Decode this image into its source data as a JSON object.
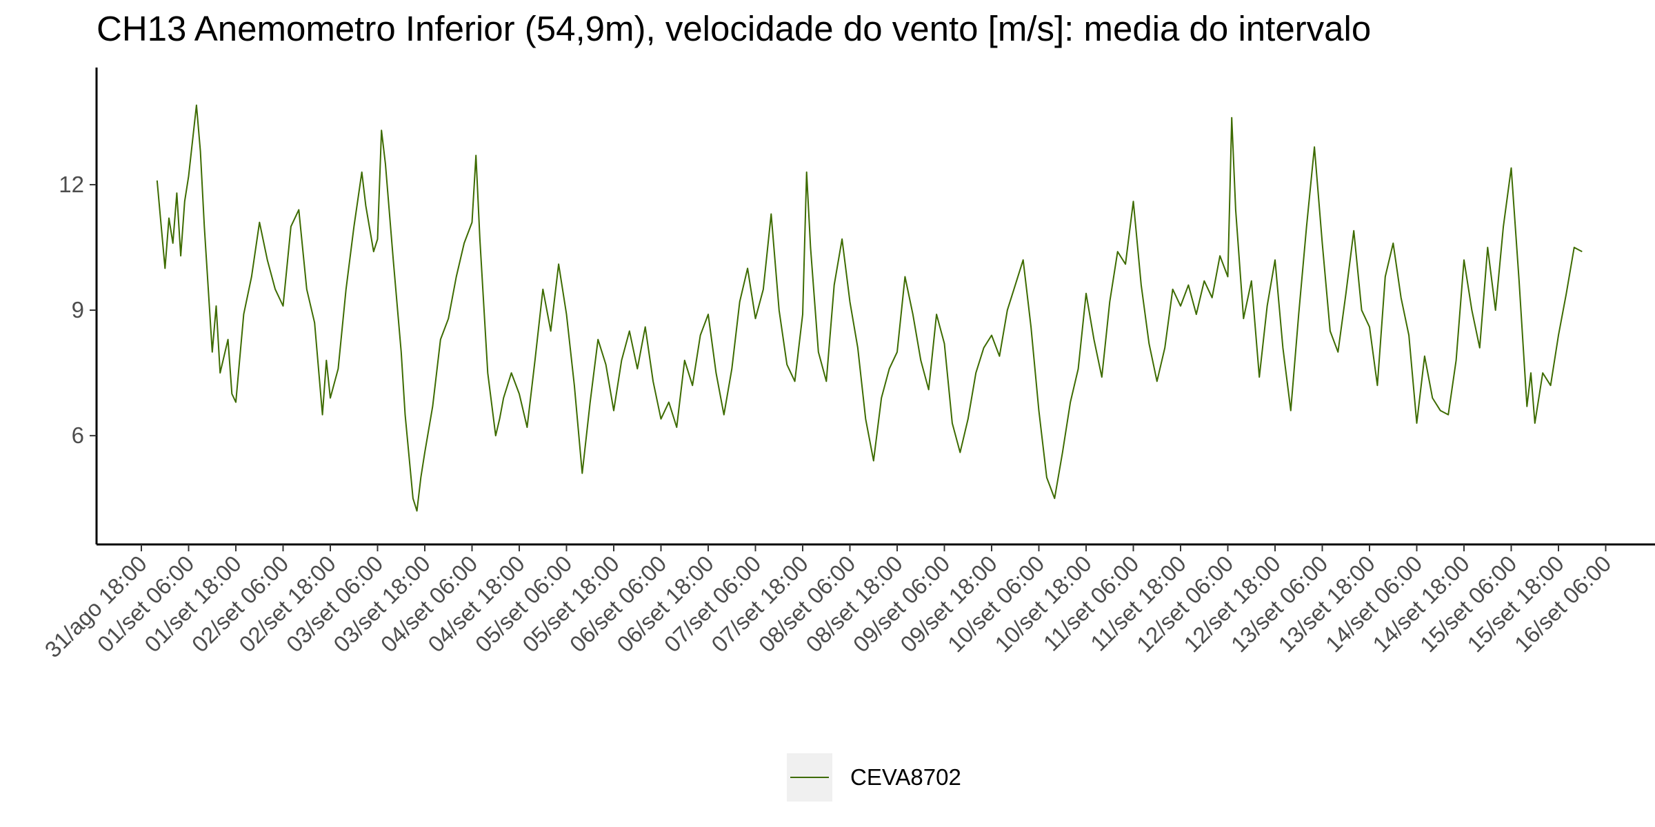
{
  "chart_data": {
    "type": "line",
    "title": "CH13 Anemometro Inferior (54,9m), velocidade do vento [m/s]: media do intervalo",
    "xlabel": "",
    "ylabel": "",
    "x_ticks": [
      "31/ago 18:00",
      "01/set 06:00",
      "01/set 18:00",
      "02/set 06:00",
      "02/set 18:00",
      "03/set 06:00",
      "03/set 18:00",
      "04/set 06:00",
      "04/set 18:00",
      "05/set 06:00",
      "05/set 18:00",
      "06/set 06:00",
      "06/set 18:00",
      "07/set 06:00",
      "07/set 18:00",
      "08/set 06:00",
      "08/set 18:00",
      "09/set 06:00",
      "09/set 18:00",
      "10/set 06:00",
      "10/set 18:00",
      "11/set 06:00",
      "11/set 18:00",
      "12/set 06:00",
      "12/set 18:00",
      "13/set 06:00",
      "13/set 18:00",
      "14/set 06:00",
      "14/set 18:00",
      "15/set 06:00",
      "15/set 18:00",
      "16/set 06:00"
    ],
    "y_ticks": [
      6,
      9,
      12
    ],
    "ylim": [
      3.4,
      14.8
    ],
    "grid": false,
    "legend_position": "bottom",
    "color": "#3d6b00",
    "series": [
      {
        "name": "CEVA8702",
        "values": [
          [
            "31/ago 22:00",
            12.1
          ],
          [
            "01/set 00:00",
            10.0
          ],
          [
            "01/set 01:00",
            11.2
          ],
          [
            "01/set 02:00",
            10.6
          ],
          [
            "01/set 03:00",
            11.8
          ],
          [
            "01/set 04:00",
            10.3
          ],
          [
            "01/set 05:00",
            11.6
          ],
          [
            "01/set 06:00",
            12.2
          ],
          [
            "01/set 08:00",
            13.9
          ],
          [
            "01/set 09:00",
            12.8
          ],
          [
            "01/set 10:00",
            11.0
          ],
          [
            "01/set 12:00",
            8.0
          ],
          [
            "01/set 13:00",
            9.1
          ],
          [
            "01/set 14:00",
            7.5
          ],
          [
            "01/set 16:00",
            8.3
          ],
          [
            "01/set 17:00",
            7.0
          ],
          [
            "01/set 18:00",
            6.8
          ],
          [
            "01/set 20:00",
            8.9
          ],
          [
            "01/set 22:00",
            9.8
          ],
          [
            "02/set 00:00",
            11.1
          ],
          [
            "02/set 02:00",
            10.2
          ],
          [
            "02/set 04:00",
            9.5
          ],
          [
            "02/set 06:00",
            9.1
          ],
          [
            "02/set 08:00",
            11.0
          ],
          [
            "02/set 10:00",
            11.4
          ],
          [
            "02/set 12:00",
            9.5
          ],
          [
            "02/set 14:00",
            8.7
          ],
          [
            "02/set 16:00",
            6.5
          ],
          [
            "02/set 17:00",
            7.8
          ],
          [
            "02/set 18:00",
            6.9
          ],
          [
            "02/set 20:00",
            7.6
          ],
          [
            "02/set 22:00",
            9.5
          ],
          [
            "03/set 00:00",
            11.0
          ],
          [
            "03/set 02:00",
            12.3
          ],
          [
            "03/set 03:00",
            11.5
          ],
          [
            "03/set 05:00",
            10.4
          ],
          [
            "03/set 06:00",
            10.7
          ],
          [
            "03/set 07:00",
            13.3
          ],
          [
            "03/set 08:00",
            12.5
          ],
          [
            "03/set 10:00",
            10.2
          ],
          [
            "03/set 12:00",
            8.0
          ],
          [
            "03/set 13:00",
            6.5
          ],
          [
            "03/set 15:00",
            4.5
          ],
          [
            "03/set 16:00",
            4.2
          ],
          [
            "03/set 17:00",
            5.0
          ],
          [
            "03/set 18:00",
            5.6
          ],
          [
            "03/set 20:00",
            6.7
          ],
          [
            "03/set 22:00",
            8.3
          ],
          [
            "04/set 00:00",
            8.8
          ],
          [
            "04/set 02:00",
            9.8
          ],
          [
            "04/set 04:00",
            10.6
          ],
          [
            "04/set 06:00",
            11.1
          ],
          [
            "04/set 07:00",
            12.7
          ],
          [
            "04/set 08:00",
            10.7
          ],
          [
            "04/set 10:00",
            7.5
          ],
          [
            "04/set 12:00",
            6.0
          ],
          [
            "04/set 13:00",
            6.4
          ],
          [
            "04/set 14:00",
            6.9
          ],
          [
            "04/set 16:00",
            7.5
          ],
          [
            "04/set 18:00",
            7.0
          ],
          [
            "04/set 20:00",
            6.2
          ],
          [
            "04/set 22:00",
            7.8
          ],
          [
            "05/set 00:00",
            9.5
          ],
          [
            "05/set 02:00",
            8.5
          ],
          [
            "05/set 04:00",
            10.1
          ],
          [
            "05/set 06:00",
            8.9
          ],
          [
            "05/set 08:00",
            7.2
          ],
          [
            "05/set 10:00",
            5.1
          ],
          [
            "05/set 12:00",
            6.8
          ],
          [
            "05/set 14:00",
            8.3
          ],
          [
            "05/set 16:00",
            7.7
          ],
          [
            "05/set 18:00",
            6.6
          ],
          [
            "05/set 20:00",
            7.8
          ],
          [
            "05/set 22:00",
            8.5
          ],
          [
            "06/set 00:00",
            7.6
          ],
          [
            "06/set 02:00",
            8.6
          ],
          [
            "06/set 04:00",
            7.3
          ],
          [
            "06/set 06:00",
            6.4
          ],
          [
            "06/set 08:00",
            6.8
          ],
          [
            "06/set 10:00",
            6.2
          ],
          [
            "06/set 12:00",
            7.8
          ],
          [
            "06/set 14:00",
            7.2
          ],
          [
            "06/set 16:00",
            8.4
          ],
          [
            "06/set 18:00",
            8.9
          ],
          [
            "06/set 20:00",
            7.5
          ],
          [
            "06/set 22:00",
            6.5
          ],
          [
            "07/set 00:00",
            7.6
          ],
          [
            "07/set 02:00",
            9.2
          ],
          [
            "07/set 04:00",
            10.0
          ],
          [
            "07/set 06:00",
            8.8
          ],
          [
            "07/set 08:00",
            9.5
          ],
          [
            "07/set 10:00",
            11.3
          ],
          [
            "07/set 12:00",
            9.0
          ],
          [
            "07/set 14:00",
            7.7
          ],
          [
            "07/set 16:00",
            7.3
          ],
          [
            "07/set 18:00",
            8.9
          ],
          [
            "07/set 19:00",
            12.3
          ],
          [
            "07/set 20:00",
            10.5
          ],
          [
            "07/set 22:00",
            8.0
          ],
          [
            "08/set 00:00",
            7.3
          ],
          [
            "08/set 02:00",
            9.6
          ],
          [
            "08/set 04:00",
            10.7
          ],
          [
            "08/set 06:00",
            9.2
          ],
          [
            "08/set 08:00",
            8.1
          ],
          [
            "08/set 10:00",
            6.4
          ],
          [
            "08/set 12:00",
            5.4
          ],
          [
            "08/set 14:00",
            6.9
          ],
          [
            "08/set 16:00",
            7.6
          ],
          [
            "08/set 18:00",
            8.0
          ],
          [
            "08/set 20:00",
            9.8
          ],
          [
            "08/set 22:00",
            8.9
          ],
          [
            "09/set 00:00",
            7.8
          ],
          [
            "09/set 02:00",
            7.1
          ],
          [
            "09/set 04:00",
            8.9
          ],
          [
            "09/set 06:00",
            8.2
          ],
          [
            "09/set 08:00",
            6.3
          ],
          [
            "09/set 10:00",
            5.6
          ],
          [
            "09/set 12:00",
            6.4
          ],
          [
            "09/set 14:00",
            7.5
          ],
          [
            "09/set 16:00",
            8.1
          ],
          [
            "09/set 18:00",
            8.4
          ],
          [
            "09/set 20:00",
            7.9
          ],
          [
            "09/set 22:00",
            9.0
          ],
          [
            "10/set 00:00",
            9.6
          ],
          [
            "10/set 02:00",
            10.2
          ],
          [
            "10/set 04:00",
            8.6
          ],
          [
            "10/set 06:00",
            6.6
          ],
          [
            "10/set 08:00",
            5.0
          ],
          [
            "10/set 10:00",
            4.5
          ],
          [
            "10/set 12:00",
            5.6
          ],
          [
            "10/set 14:00",
            6.8
          ],
          [
            "10/set 16:00",
            7.6
          ],
          [
            "10/set 18:00",
            9.4
          ],
          [
            "10/set 20:00",
            8.3
          ],
          [
            "10/set 22:00",
            7.4
          ],
          [
            "11/set 00:00",
            9.2
          ],
          [
            "11/set 02:00",
            10.4
          ],
          [
            "11/set 04:00",
            10.1
          ],
          [
            "11/set 06:00",
            11.6
          ],
          [
            "11/set 08:00",
            9.6
          ],
          [
            "11/set 10:00",
            8.2
          ],
          [
            "11/set 12:00",
            7.3
          ],
          [
            "11/set 14:00",
            8.1
          ],
          [
            "11/set 16:00",
            9.5
          ],
          [
            "11/set 18:00",
            9.1
          ],
          [
            "11/set 20:00",
            9.6
          ],
          [
            "11/set 22:00",
            8.9
          ],
          [
            "12/set 00:00",
            9.7
          ],
          [
            "12/set 02:00",
            9.3
          ],
          [
            "12/set 04:00",
            10.3
          ],
          [
            "12/set 06:00",
            9.8
          ],
          [
            "12/set 07:00",
            13.6
          ],
          [
            "12/set 08:00",
            11.4
          ],
          [
            "12/set 10:00",
            8.8
          ],
          [
            "12/set 12:00",
            9.7
          ],
          [
            "12/set 14:00",
            7.4
          ],
          [
            "12/set 16:00",
            9.1
          ],
          [
            "12/set 18:00",
            10.2
          ],
          [
            "12/set 20:00",
            8.1
          ],
          [
            "12/set 22:00",
            6.6
          ],
          [
            "13/set 00:00",
            8.9
          ],
          [
            "13/set 02:00",
            11.0
          ],
          [
            "13/set 04:00",
            12.9
          ],
          [
            "13/set 06:00",
            10.6
          ],
          [
            "13/set 08:00",
            8.5
          ],
          [
            "13/set 10:00",
            8.0
          ],
          [
            "13/set 12:00",
            9.4
          ],
          [
            "13/set 14:00",
            10.9
          ],
          [
            "13/set 16:00",
            9.0
          ],
          [
            "13/set 18:00",
            8.6
          ],
          [
            "13/set 20:00",
            7.2
          ],
          [
            "13/set 22:00",
            9.8
          ],
          [
            "14/set 00:00",
            10.6
          ],
          [
            "14/set 02:00",
            9.3
          ],
          [
            "14/set 04:00",
            8.4
          ],
          [
            "14/set 06:00",
            6.3
          ],
          [
            "14/set 08:00",
            7.9
          ],
          [
            "14/set 10:00",
            6.9
          ],
          [
            "14/set 12:00",
            6.6
          ],
          [
            "14/set 14:00",
            6.5
          ],
          [
            "14/set 16:00",
            7.8
          ],
          [
            "14/set 18:00",
            10.2
          ],
          [
            "14/set 20:00",
            9.0
          ],
          [
            "14/set 22:00",
            8.1
          ],
          [
            "15/set 00:00",
            10.5
          ],
          [
            "15/set 02:00",
            9.0
          ],
          [
            "15/set 04:00",
            11.0
          ],
          [
            "15/set 06:00",
            12.4
          ],
          [
            "15/set 08:00",
            9.7
          ],
          [
            "15/set 10:00",
            6.7
          ],
          [
            "15/set 11:00",
            7.5
          ],
          [
            "15/set 12:00",
            6.3
          ],
          [
            "15/set 14:00",
            7.5
          ],
          [
            "15/set 16:00",
            7.2
          ],
          [
            "15/set 18:00",
            8.4
          ],
          [
            "15/set 20:00",
            9.4
          ],
          [
            "15/set 22:00",
            10.5
          ],
          [
            "16/set 00:00",
            10.4
          ]
        ]
      }
    ]
  }
}
